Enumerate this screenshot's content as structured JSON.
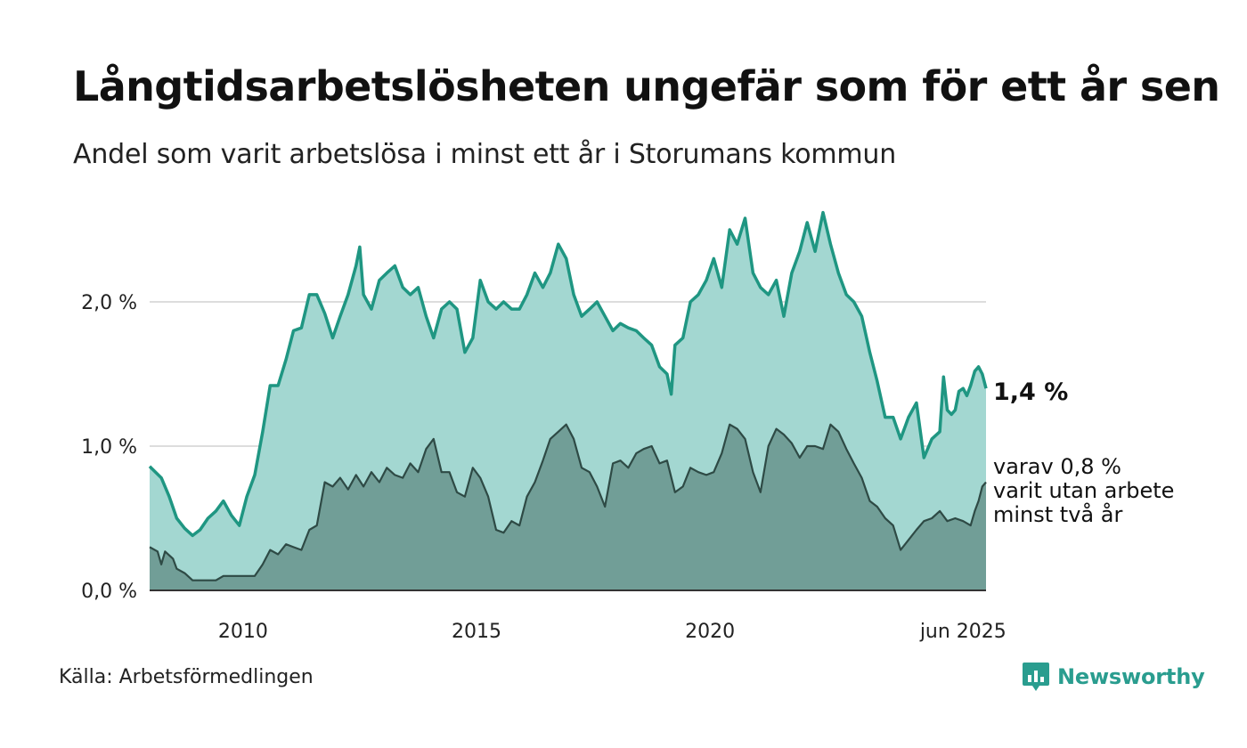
{
  "title": "Långtidsarbetslösheten ungefär som för ett år sen",
  "subtitle": "Andel som varit arbetslösa i minst ett år i Storumans kommun",
  "source": "Källa: Arbetsförmedlingen",
  "brand": {
    "name": "Newsworthy",
    "icon": "newsworthy-logo-icon",
    "color": "#2a9d8f"
  },
  "chart_data": {
    "type": "area",
    "x_axis": {
      "range": [
        2008.0,
        2025.42
      ],
      "ticks": [
        {
          "x": 2010,
          "label": "2010"
        },
        {
          "x": 2015,
          "label": "2015"
        },
        {
          "x": 2020,
          "label": "2020"
        },
        {
          "x": 2025.42,
          "label": "jun 2025"
        }
      ]
    },
    "y_axis": {
      "range": [
        0,
        2.6
      ],
      "ticks": [
        {
          "y": 0,
          "label": "0,0 %"
        },
        {
          "y": 1,
          "label": "1,0 %"
        },
        {
          "y": 2,
          "label": "2,0 %"
        }
      ],
      "grid": true
    },
    "annotations": {
      "main_value": "1,4 %",
      "secondary_lines": [
        "varav 0,8 %",
        "varit utan arbete",
        "minst två år"
      ]
    },
    "colors": {
      "main_fill": "#a3d7d1",
      "main_line": "#1f9682",
      "sub_fill": "#719e97",
      "sub_line": "#2e4a45",
      "grid": "#dddddd",
      "baseline": "#333333"
    },
    "series": [
      {
        "key": "minst_ett_ar",
        "points": [
          [
            2008.0,
            0.86
          ],
          [
            2008.25,
            0.78
          ],
          [
            2008.42,
            0.65
          ],
          [
            2008.58,
            0.5
          ],
          [
            2008.75,
            0.43
          ],
          [
            2008.92,
            0.38
          ],
          [
            2009.08,
            0.42
          ],
          [
            2009.25,
            0.5
          ],
          [
            2009.42,
            0.55
          ],
          [
            2009.58,
            0.62
          ],
          [
            2009.75,
            0.52
          ],
          [
            2009.92,
            0.45
          ],
          [
            2010.08,
            0.65
          ],
          [
            2010.25,
            0.8
          ],
          [
            2010.42,
            1.1
          ],
          [
            2010.58,
            1.42
          ],
          [
            2010.75,
            1.42
          ],
          [
            2010.92,
            1.6
          ],
          [
            2011.08,
            1.8
          ],
          [
            2011.25,
            1.82
          ],
          [
            2011.42,
            2.05
          ],
          [
            2011.58,
            2.05
          ],
          [
            2011.75,
            1.92
          ],
          [
            2011.92,
            1.75
          ],
          [
            2012.08,
            1.9
          ],
          [
            2012.25,
            2.05
          ],
          [
            2012.42,
            2.25
          ],
          [
            2012.5,
            2.38
          ],
          [
            2012.58,
            2.05
          ],
          [
            2012.75,
            1.95
          ],
          [
            2012.92,
            2.15
          ],
          [
            2013.08,
            2.2
          ],
          [
            2013.25,
            2.25
          ],
          [
            2013.42,
            2.1
          ],
          [
            2013.58,
            2.05
          ],
          [
            2013.75,
            2.1
          ],
          [
            2013.92,
            1.9
          ],
          [
            2014.08,
            1.75
          ],
          [
            2014.25,
            1.95
          ],
          [
            2014.42,
            2.0
          ],
          [
            2014.58,
            1.95
          ],
          [
            2014.75,
            1.65
          ],
          [
            2014.92,
            1.75
          ],
          [
            2015.08,
            2.15
          ],
          [
            2015.25,
            2.0
          ],
          [
            2015.42,
            1.95
          ],
          [
            2015.58,
            2.0
          ],
          [
            2015.75,
            1.95
          ],
          [
            2015.92,
            1.95
          ],
          [
            2016.08,
            2.05
          ],
          [
            2016.25,
            2.2
          ],
          [
            2016.42,
            2.1
          ],
          [
            2016.58,
            2.2
          ],
          [
            2016.75,
            2.4
          ],
          [
            2016.92,
            2.3
          ],
          [
            2017.08,
            2.05
          ],
          [
            2017.25,
            1.9
          ],
          [
            2017.42,
            1.95
          ],
          [
            2017.58,
            2.0
          ],
          [
            2017.75,
            1.9
          ],
          [
            2017.92,
            1.8
          ],
          [
            2018.08,
            1.85
          ],
          [
            2018.25,
            1.82
          ],
          [
            2018.42,
            1.8
          ],
          [
            2018.58,
            1.75
          ],
          [
            2018.75,
            1.7
          ],
          [
            2018.92,
            1.55
          ],
          [
            2019.08,
            1.5
          ],
          [
            2019.17,
            1.36
          ],
          [
            2019.25,
            1.7
          ],
          [
            2019.42,
            1.75
          ],
          [
            2019.58,
            2.0
          ],
          [
            2019.75,
            2.05
          ],
          [
            2019.92,
            2.15
          ],
          [
            2020.08,
            2.3
          ],
          [
            2020.25,
            2.1
          ],
          [
            2020.42,
            2.5
          ],
          [
            2020.58,
            2.4
          ],
          [
            2020.75,
            2.58
          ],
          [
            2020.92,
            2.2
          ],
          [
            2021.08,
            2.1
          ],
          [
            2021.25,
            2.05
          ],
          [
            2021.42,
            2.15
          ],
          [
            2021.58,
            1.9
          ],
          [
            2021.75,
            2.2
          ],
          [
            2021.92,
            2.35
          ],
          [
            2022.08,
            2.55
          ],
          [
            2022.25,
            2.35
          ],
          [
            2022.42,
            2.62
          ],
          [
            2022.58,
            2.4
          ],
          [
            2022.75,
            2.2
          ],
          [
            2022.92,
            2.05
          ],
          [
            2023.08,
            2.0
          ],
          [
            2023.25,
            1.9
          ],
          [
            2023.42,
            1.65
          ],
          [
            2023.58,
            1.45
          ],
          [
            2023.75,
            1.2
          ],
          [
            2023.92,
            1.2
          ],
          [
            2024.08,
            1.05
          ],
          [
            2024.25,
            1.2
          ],
          [
            2024.42,
            1.3
          ],
          [
            2024.58,
            0.92
          ],
          [
            2024.75,
            1.05
          ],
          [
            2024.92,
            1.1
          ],
          [
            2025.0,
            1.48
          ],
          [
            2025.08,
            1.25
          ],
          [
            2025.17,
            1.22
          ],
          [
            2025.25,
            1.25
          ],
          [
            2025.33,
            1.38
          ],
          [
            2025.42,
            1.4
          ],
          [
            2025.5,
            1.35
          ],
          [
            2025.58,
            1.42
          ],
          [
            2025.67,
            1.52
          ],
          [
            2025.75,
            1.55
          ],
          [
            2025.83,
            1.5
          ],
          [
            2025.91,
            1.4
          ]
        ]
      },
      {
        "key": "minst_tva_ar",
        "points": [
          [
            2008.0,
            0.3
          ],
          [
            2008.17,
            0.27
          ],
          [
            2008.25,
            0.18
          ],
          [
            2008.33,
            0.27
          ],
          [
            2008.5,
            0.22
          ],
          [
            2008.58,
            0.15
          ],
          [
            2008.75,
            0.12
          ],
          [
            2008.92,
            0.07
          ],
          [
            2009.08,
            0.07
          ],
          [
            2009.25,
            0.07
          ],
          [
            2009.42,
            0.07
          ],
          [
            2009.58,
            0.1
          ],
          [
            2009.75,
            0.1
          ],
          [
            2009.92,
            0.1
          ],
          [
            2010.08,
            0.1
          ],
          [
            2010.25,
            0.1
          ],
          [
            2010.42,
            0.18
          ],
          [
            2010.58,
            0.28
          ],
          [
            2010.75,
            0.25
          ],
          [
            2010.92,
            0.32
          ],
          [
            2011.08,
            0.3
          ],
          [
            2011.25,
            0.28
          ],
          [
            2011.42,
            0.42
          ],
          [
            2011.58,
            0.45
          ],
          [
            2011.75,
            0.75
          ],
          [
            2011.92,
            0.72
          ],
          [
            2012.08,
            0.78
          ],
          [
            2012.25,
            0.7
          ],
          [
            2012.42,
            0.8
          ],
          [
            2012.58,
            0.72
          ],
          [
            2012.75,
            0.82
          ],
          [
            2012.92,
            0.75
          ],
          [
            2013.08,
            0.85
          ],
          [
            2013.25,
            0.8
          ],
          [
            2013.42,
            0.78
          ],
          [
            2013.58,
            0.88
          ],
          [
            2013.75,
            0.82
          ],
          [
            2013.92,
            0.98
          ],
          [
            2014.08,
            1.05
          ],
          [
            2014.25,
            0.82
          ],
          [
            2014.42,
            0.82
          ],
          [
            2014.58,
            0.68
          ],
          [
            2014.75,
            0.65
          ],
          [
            2014.92,
            0.85
          ],
          [
            2015.08,
            0.78
          ],
          [
            2015.25,
            0.65
          ],
          [
            2015.42,
            0.42
          ],
          [
            2015.58,
            0.4
          ],
          [
            2015.75,
            0.48
          ],
          [
            2015.92,
            0.45
          ],
          [
            2016.08,
            0.65
          ],
          [
            2016.25,
            0.75
          ],
          [
            2016.42,
            0.9
          ],
          [
            2016.58,
            1.05
          ],
          [
            2016.75,
            1.1
          ],
          [
            2016.92,
            1.15
          ],
          [
            2017.08,
            1.05
          ],
          [
            2017.25,
            0.85
          ],
          [
            2017.42,
            0.82
          ],
          [
            2017.58,
            0.72
          ],
          [
            2017.75,
            0.58
          ],
          [
            2017.92,
            0.88
          ],
          [
            2018.08,
            0.9
          ],
          [
            2018.25,
            0.85
          ],
          [
            2018.42,
            0.95
          ],
          [
            2018.58,
            0.98
          ],
          [
            2018.75,
            1.0
          ],
          [
            2018.92,
            0.88
          ],
          [
            2019.08,
            0.9
          ],
          [
            2019.25,
            0.68
          ],
          [
            2019.42,
            0.72
          ],
          [
            2019.58,
            0.85
          ],
          [
            2019.75,
            0.82
          ],
          [
            2019.92,
            0.8
          ],
          [
            2020.08,
            0.82
          ],
          [
            2020.25,
            0.95
          ],
          [
            2020.42,
            1.15
          ],
          [
            2020.58,
            1.12
          ],
          [
            2020.75,
            1.05
          ],
          [
            2020.92,
            0.82
          ],
          [
            2021.08,
            0.68
          ],
          [
            2021.25,
            1.0
          ],
          [
            2021.42,
            1.12
          ],
          [
            2021.58,
            1.08
          ],
          [
            2021.75,
            1.02
          ],
          [
            2021.92,
            0.92
          ],
          [
            2022.08,
            1.0
          ],
          [
            2022.25,
            1.0
          ],
          [
            2022.42,
            0.98
          ],
          [
            2022.58,
            1.15
          ],
          [
            2022.75,
            1.1
          ],
          [
            2022.92,
            0.98
          ],
          [
            2023.08,
            0.88
          ],
          [
            2023.25,
            0.78
          ],
          [
            2023.42,
            0.62
          ],
          [
            2023.58,
            0.58
          ],
          [
            2023.75,
            0.5
          ],
          [
            2023.92,
            0.45
          ],
          [
            2024.08,
            0.28
          ],
          [
            2024.25,
            0.35
          ],
          [
            2024.42,
            0.42
          ],
          [
            2024.58,
            0.48
          ],
          [
            2024.75,
            0.5
          ],
          [
            2024.92,
            0.55
          ],
          [
            2025.08,
            0.48
          ],
          [
            2025.25,
            0.5
          ],
          [
            2025.42,
            0.48
          ],
          [
            2025.58,
            0.45
          ],
          [
            2025.67,
            0.55
          ],
          [
            2025.75,
            0.62
          ],
          [
            2025.83,
            0.72
          ],
          [
            2025.91,
            0.75
          ]
        ]
      }
    ]
  }
}
